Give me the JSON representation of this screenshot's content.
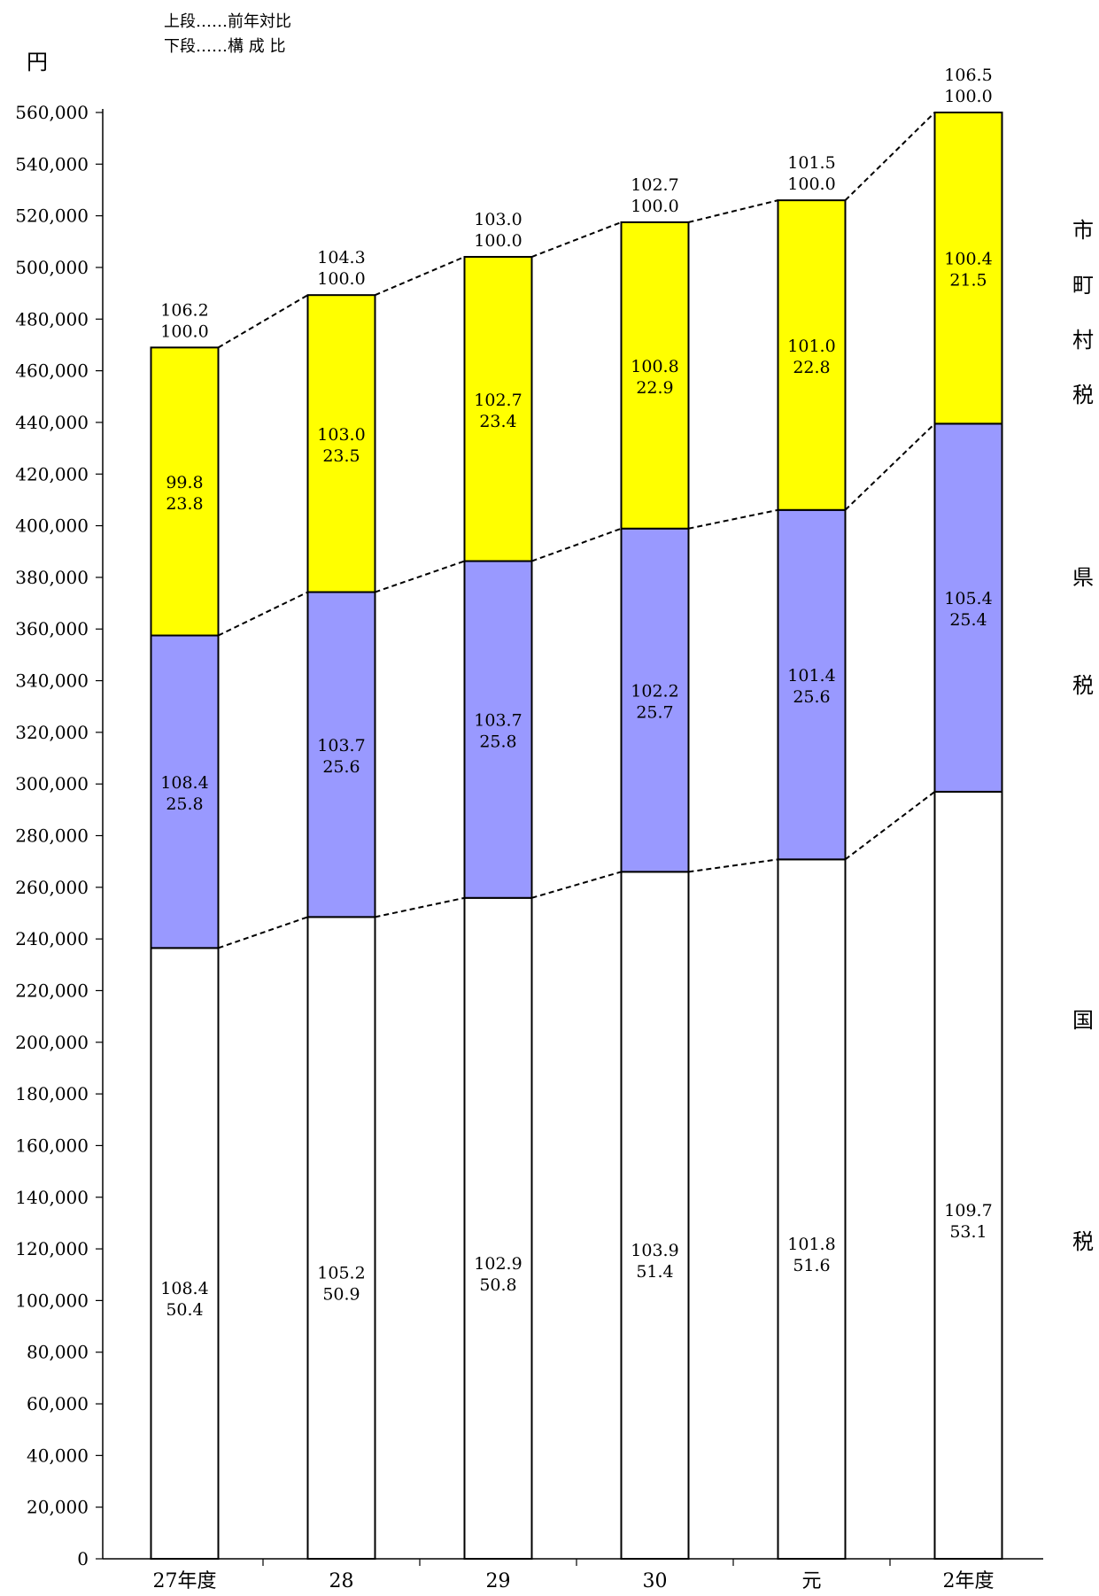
{
  "legend_note": {
    "upper": "上段……前年対比",
    "lower": "下段……構 成 比"
  },
  "chart_data": {
    "type": "bar",
    "stacked": true,
    "ylabel": "円",
    "ylim": [
      0,
      560000
    ],
    "ytick_step": 20000,
    "ytick_labels": [
      "0",
      "20,000",
      "40,000",
      "60,000",
      "80,000",
      "100,000",
      "120,000",
      "140,000",
      "160,000",
      "180,000",
      "200,000",
      "220,000",
      "240,000",
      "260,000",
      "280,000",
      "300,000",
      "320,000",
      "340,000",
      "360,000",
      "380,000",
      "400,000",
      "420,000",
      "440,000",
      "460,000",
      "480,000",
      "500,000",
      "520,000",
      "540,000",
      "560,000"
    ],
    "categories": [
      "27年度",
      "28",
      "29",
      "30",
      "元",
      "2年度"
    ],
    "series": [
      {
        "name": "国　　税",
        "color": "#ffffff",
        "values": [
          236500,
          248500,
          255900,
          266000,
          270800,
          297000
        ],
        "upper_labels": [
          "108.4",
          "105.2",
          "102.9",
          "103.9",
          "101.8",
          "109.7"
        ],
        "lower_labels": [
          "50.4",
          "50.9",
          "50.8",
          "51.4",
          "51.6",
          "53.1"
        ]
      },
      {
        "name": "県　税",
        "color": "#9999ff",
        "values": [
          121000,
          125800,
          130400,
          132900,
          135300,
          142500
        ],
        "upper_labels": [
          "108.4",
          "103.7",
          "103.7",
          "102.2",
          "101.4",
          "105.4"
        ],
        "lower_labels": [
          "25.8",
          "25.6",
          "25.8",
          "25.7",
          "25.6",
          "25.4"
        ]
      },
      {
        "name": "市町村税",
        "color": "#ffff00",
        "values": [
          111500,
          115000,
          117800,
          118600,
          119900,
          120500
        ],
        "upper_labels": [
          "99.8",
          "103.0",
          "102.7",
          "100.8",
          "101.0",
          "100.4"
        ],
        "lower_labels": [
          "23.8",
          "23.5",
          "23.4",
          "22.9",
          "22.8",
          "21.5"
        ]
      }
    ],
    "total_upper_labels": [
      "106.2",
      "104.3",
      "103.0",
      "102.7",
      "101.5",
      "106.5"
    ],
    "total_lower_labels": [
      "100.0",
      "100.0",
      "100.0",
      "100.0",
      "100.0",
      "100.0"
    ],
    "side_labels": [
      {
        "chars": [
          "市",
          "町",
          "村",
          "税"
        ]
      },
      {
        "chars": [
          "県",
          "税"
        ]
      },
      {
        "chars": [
          "国",
          "税"
        ]
      }
    ]
  }
}
